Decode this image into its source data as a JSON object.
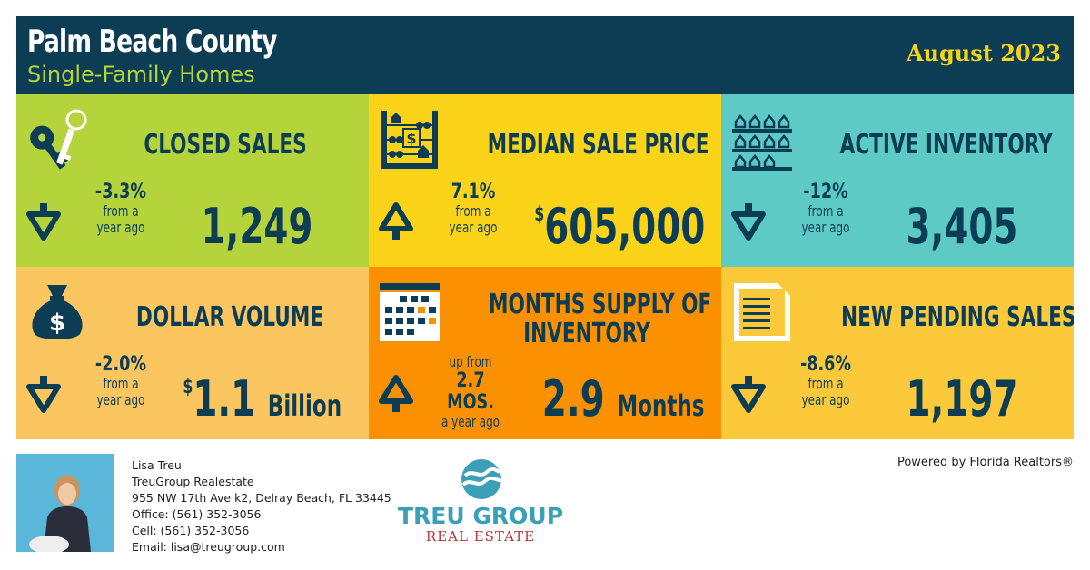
{
  "header": {
    "title": "Palm Beach County",
    "subtitle": "Single-Family Homes",
    "date": "August 2023"
  },
  "tiles": [
    {
      "label": "CLOSED SALES",
      "change": "-3.3%",
      "change_note_1": "from a",
      "change_note_2": "year ago",
      "direction": "down",
      "value": "1,249",
      "icon": "keys-icon"
    },
    {
      "label": "MEDIAN SALE PRICE",
      "change": "7.1%",
      "change_note_1": "from a",
      "change_note_2": "year ago",
      "direction": "up",
      "value_prefix": "$",
      "value": "605,000",
      "icon": "abacus-icon"
    },
    {
      "label": "ACTIVE INVENTORY",
      "change": "-12%",
      "change_note_1": "from a",
      "change_note_2": "year ago",
      "direction": "down",
      "value": "3,405",
      "icon": "houses-shelf-icon"
    },
    {
      "label": "DOLLAR VOLUME",
      "change": "-2.0%",
      "change_note_1": "from a",
      "change_note_2": "year ago",
      "direction": "down",
      "value_prefix": "$",
      "value": "1.1",
      "value_unit": "Billion",
      "icon": "money-bag-icon"
    },
    {
      "label_1": "MONTHS SUPPLY OF",
      "label_2": "INVENTORY",
      "change_note_0": "up from",
      "change": "2.7 MOS.",
      "change_note_2": "a year ago",
      "direction": "up",
      "value": "2.9",
      "value_unit": "Months",
      "icon": "calendar-icon"
    },
    {
      "label": "NEW PENDING SALES",
      "change": "-8.6%",
      "change_note_1": "from a",
      "change_note_2": "year ago",
      "direction": "down",
      "value": "1,197",
      "icon": "document-icon"
    }
  ],
  "contact": {
    "name": "Lisa Treu",
    "company": "TreuGroup Realestate",
    "address": "955 NW 17th Ave k2, Delray Beach, FL 33445",
    "office": "Office: (561) 352-3056",
    "cell": "Cell: (561) 352-3056",
    "email": "Email: lisa@treugroup.com"
  },
  "logo": {
    "main": "TREU GROUP",
    "sub": "REAL ESTATE"
  },
  "powered_by": "Powered by Florida Realtors®",
  "colors": {
    "navy": "#0d3d55",
    "green": "#b5d33a",
    "yellow": "#fbd419",
    "teal": "#5ecac6",
    "peach": "#fbc560",
    "orange": "#fb9100",
    "gold": "#fbc93a"
  }
}
